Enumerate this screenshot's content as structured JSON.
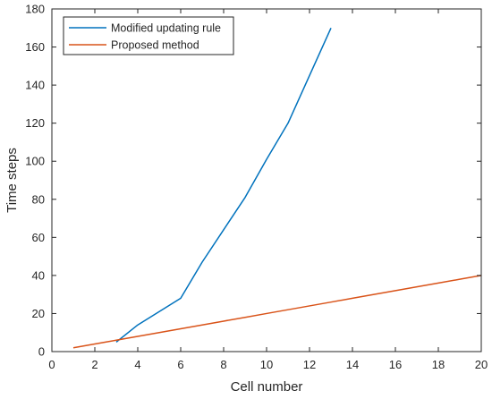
{
  "chart_data": {
    "type": "line",
    "title": "",
    "xlabel": "Cell number",
    "ylabel": "Time steps",
    "xlim": [
      0,
      20
    ],
    "ylim": [
      0,
      180
    ],
    "xticks": [
      "0",
      "2",
      "4",
      "6",
      "8",
      "10",
      "12",
      "14",
      "16",
      "18",
      "20"
    ],
    "yticks": [
      "0",
      "20",
      "40",
      "60",
      "80",
      "100",
      "120",
      "140",
      "160",
      "180"
    ],
    "grid": false,
    "legend_position": "top-left",
    "series": [
      {
        "name": "Modified updating rule",
        "color": "#0072BD",
        "x": [
          3,
          4,
          6,
          7,
          8,
          9,
          10,
          11,
          12,
          13
        ],
        "y": [
          5,
          14,
          28,
          47,
          64,
          81,
          101,
          120,
          145,
          170
        ]
      },
      {
        "name": "Proposed method",
        "color": "#D95319",
        "x": [
          1,
          2,
          3,
          4,
          5,
          6,
          7,
          8,
          9,
          10,
          11,
          12,
          13,
          14,
          15,
          16,
          17,
          18,
          19,
          20
        ],
        "y": [
          2,
          4,
          6,
          8,
          10,
          12,
          14,
          16,
          18,
          20,
          22,
          24,
          26,
          28,
          30,
          32,
          34,
          36,
          38,
          40
        ]
      }
    ]
  }
}
